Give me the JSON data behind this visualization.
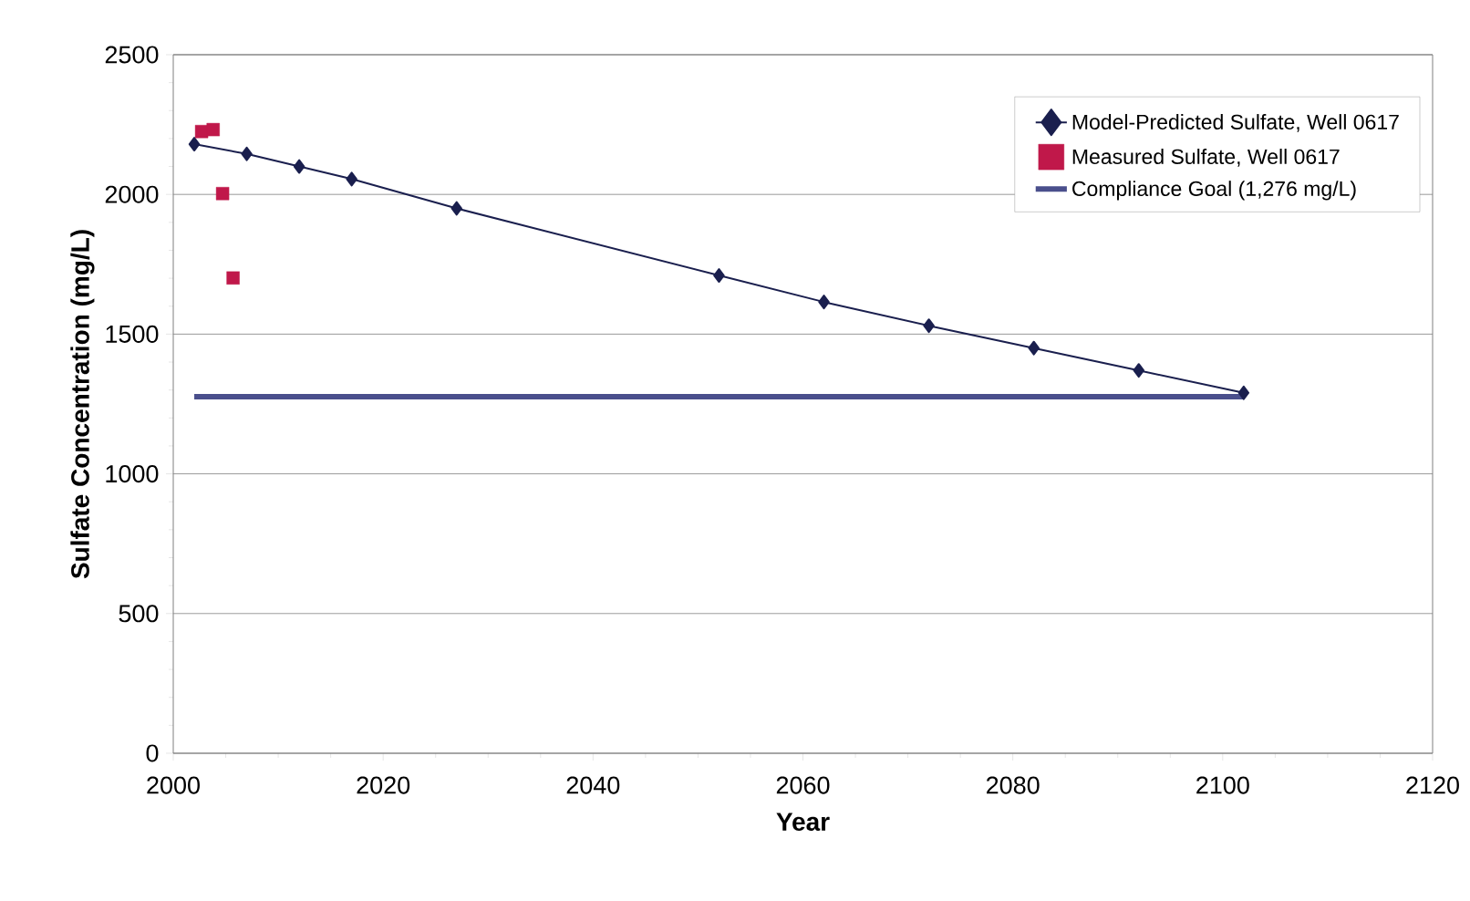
{
  "chart_data": {
    "type": "line",
    "xlabel": "Year",
    "ylabel": "Sulfate Concentration (mg/L)",
    "xlim": [
      2000,
      2120
    ],
    "ylim": [
      0,
      2500
    ],
    "xticks": [
      2000,
      2020,
      2040,
      2060,
      2080,
      2100,
      2120
    ],
    "yticks": [
      0,
      500,
      1000,
      1500,
      2000,
      2500
    ],
    "grid": "y",
    "legend": "top right",
    "series": [
      {
        "name": "Model-Predicted Sulfate, Well 0617",
        "marker": "diamond",
        "color": "#1a1f4e",
        "x": [
          2002,
          2007,
          2012,
          2017,
          2027,
          2052,
          2062,
          2072,
          2082,
          2092,
          2102
        ],
        "values": [
          2180,
          2145,
          2100,
          2055,
          1950,
          1710,
          1615,
          1530,
          1450,
          1370,
          1290
        ]
      },
      {
        "name": "Measured Sulfate, Well 0617",
        "type": "scatter",
        "marker": "square",
        "color": "#c0184a",
        "x": [
          2002.7,
          2003.8,
          2004.7,
          2005.7
        ],
        "values": [
          2225,
          2232,
          2003,
          1701
        ]
      },
      {
        "name": "Compliance Goal (1,276 mg/L)",
        "marker": "none",
        "color": "#4a4f8c",
        "x": [
          2002,
          2102
        ],
        "values": [
          1276,
          1276
        ]
      }
    ]
  }
}
